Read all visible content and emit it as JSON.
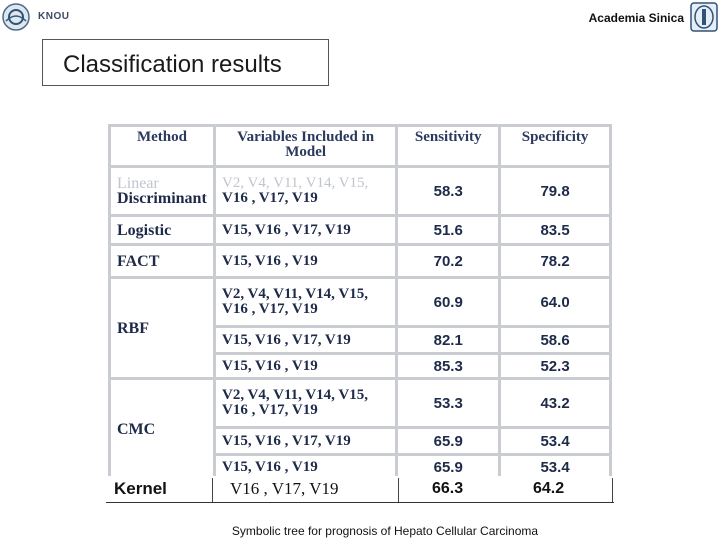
{
  "header": {
    "left_logo_text": "KNOU",
    "org_name": "Academia Sinica"
  },
  "title": "Classification results",
  "table": {
    "headers": [
      "Method",
      "Variables Included in Model",
      "Sensitivity",
      "Specificity"
    ],
    "rows": [
      {
        "method": "Discriminant",
        "method_faded": "Linear",
        "vars_faded": "V2, V4, V11, V14, V15,",
        "vars": "V16 , V17, V19",
        "sensitivity": "58.3",
        "specificity": "79.8"
      },
      {
        "method": "Logistic",
        "vars": "V15, V16 , V17, V19",
        "sensitivity": "51.6",
        "specificity": "83.5"
      },
      {
        "method": "FACT",
        "vars": "V15, V16 , V19",
        "sensitivity": "70.2",
        "specificity": "78.2"
      },
      {
        "method": "RBF",
        "vars": "V2, V4, V11, V14, V15, V16 , V17, V19",
        "sensitivity": "60.9",
        "specificity": "64.0"
      },
      {
        "method": "",
        "vars": "V15, V16 , V17, V19",
        "sensitivity": "82.1",
        "specificity": "58.6"
      },
      {
        "method": "",
        "vars": "V15, V16 , V19",
        "sensitivity": "85.3",
        "specificity": "52.3"
      },
      {
        "method": "CMC",
        "vars": "V2, V4, V11, V14, V15, V16 , V17, V19",
        "sensitivity": "53.3",
        "specificity": "43.2"
      },
      {
        "method": "",
        "vars": "V15, V16 , V17, V19",
        "sensitivity": "65.9",
        "specificity": "53.4"
      },
      {
        "method": "",
        "vars": "V15, V16 , V19",
        "sensitivity": "65.9",
        "specificity": "53.4"
      }
    ],
    "kernel": {
      "method": "Kernel",
      "vars": "V16 , V17, V19",
      "sensitivity": "66.3",
      "specificity": "64.2"
    }
  },
  "caption": "Symbolic tree for prognosis of Hepato Cellular Carcinoma"
}
